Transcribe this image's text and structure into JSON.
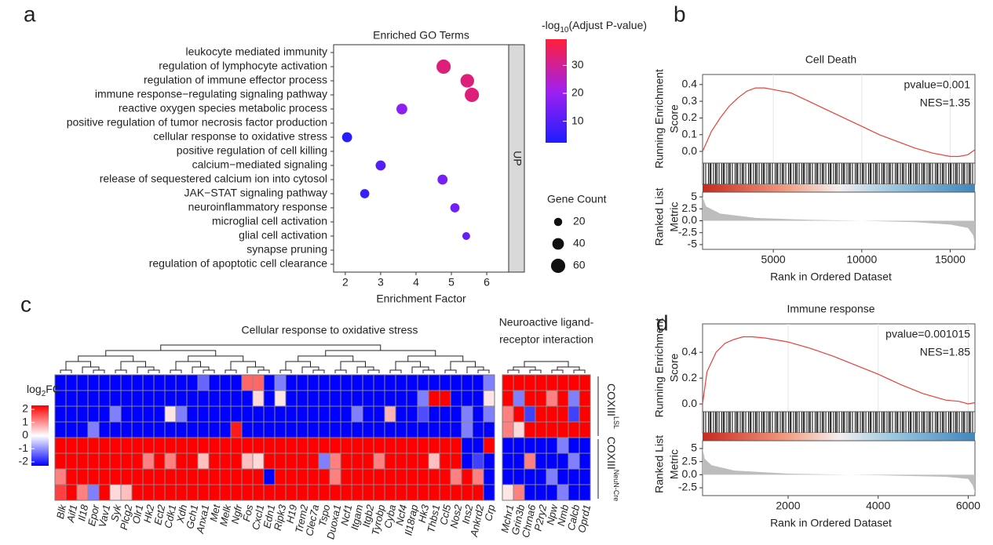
{
  "chart_data": [
    {
      "type": "dot",
      "panel": "a",
      "title": "Enriched GO Terms",
      "x_label": "Enrichment Factor",
      "categories": [
        "leukocyte mediated immunity",
        "regulation of lymphocyte activation",
        "regulation of immune effector process",
        "immune response−regulating signaling pathway",
        "reactive oxygen species metabolic process",
        "positive regulation of tumor necrosis factor production",
        "cellular response to oxidative stress",
        "positive regulation of cell killing",
        "calcium−mediated signaling",
        "release of sequestered calcium ion into cytosol",
        "JAK−STAT signaling pathway",
        "neuroinflammatory response",
        "microglial cell activation",
        "glial cell activation",
        "synapse pruning",
        "regulation of apoptotic cell clearance"
      ],
      "x": [
        null,
        4.78,
        5.45,
        5.58,
        3.6,
        null,
        2.05,
        null,
        3.0,
        4.75,
        2.55,
        5.1,
        null,
        5.42,
        null,
        null
      ],
      "sizes": [
        null,
        60,
        55,
        60,
        35,
        null,
        30,
        null,
        30,
        30,
        25,
        25,
        null,
        18,
        null,
        null
      ],
      "colors": [
        null,
        33,
        33,
        33,
        18,
        null,
        4,
        null,
        10,
        15,
        6,
        14,
        null,
        12,
        null,
        null
      ],
      "xlim": [
        1.67,
        6.62
      ],
      "xticks": [
        2,
        3,
        4,
        5,
        6
      ],
      "facet": "UP",
      "color_label": [
        "-log",
        "10",
        "(Adjust P-value)"
      ],
      "color_lim": [
        2.3,
        39.4
      ],
      "color_ticks": [
        10,
        20,
        30
      ],
      "color_scale": [
        "#1d1dff",
        "#a020f0",
        "#ff1f3a"
      ],
      "size_label": "Gene Count",
      "size_ticks": [
        20,
        40,
        60
      ]
    },
    {
      "type": "gsea",
      "panel": "b",
      "title": "Cell Death",
      "annotations": [
        "pvalue=0.001",
        "NES=1.35"
      ],
      "y_label": [
        "Running Enrichment",
        "Score"
      ],
      "y2_label": [
        "Ranked List",
        "Metric"
      ],
      "x_label": "Rank in Ordered Dataset",
      "x": [
        1000,
        1500,
        2000,
        2500,
        3000,
        3500,
        4000,
        4500,
        5000,
        6000,
        7000,
        8000,
        9000,
        10000,
        11000,
        12000,
        13000,
        14000,
        15000,
        15500,
        16000,
        16400
      ],
      "values": [
        0,
        0.12,
        0.2,
        0.27,
        0.32,
        0.36,
        0.38,
        0.38,
        0.37,
        0.35,
        0.3,
        0.25,
        0.2,
        0.15,
        0.1,
        0.06,
        0.02,
        -0.01,
        -0.03,
        -0.03,
        -0.02,
        0.01
      ],
      "metric_x": [
        1000,
        1200,
        2000,
        4000,
        7000,
        10000,
        13000,
        15000,
        16000,
        16300,
        16400
      ],
      "metric": [
        5,
        3,
        1.5,
        0.6,
        0.2,
        0,
        -0.3,
        -0.8,
        -1.5,
        -3,
        -5
      ],
      "color": "#e8413a",
      "xlim": [
        1000,
        16400
      ],
      "xticks": [
        5000,
        10000,
        15000
      ],
      "ylim": [
        -0.07,
        0.46
      ],
      "yticks": [
        {
          "value": 0,
          "label": "0.0"
        },
        0.1,
        0.2,
        0.3,
        0.4
      ],
      "y2lim": [
        -6,
        6
      ],
      "y2ticks": [
        5,
        2.5,
        {
          "value": 0,
          "label": "0.0"
        },
        -2.5,
        -5
      ]
    },
    {
      "type": "gsea",
      "panel": "d",
      "title": "Immune response",
      "annotations": [
        "pvalue=0.001015",
        "NES=1.85"
      ],
      "y_label": [
        "Running Enrichment",
        "Score"
      ],
      "y2_label": [
        "Ranked List",
        "Metric"
      ],
      "x_label": "Rank in Ordered Dataset",
      "x": [
        100,
        200,
        400,
        600,
        800,
        1000,
        1200,
        1500,
        2000,
        2500,
        3000,
        3500,
        4000,
        4500,
        5000,
        5500,
        5800,
        6000,
        6150
      ],
      "values": [
        0,
        0.25,
        0.4,
        0.47,
        0.5,
        0.52,
        0.52,
        0.51,
        0.48,
        0.43,
        0.37,
        0.3,
        0.23,
        0.15,
        0.08,
        0.03,
        0.02,
        0,
        0.01
      ],
      "metric_x": [
        100,
        150,
        300,
        800,
        2000,
        4000,
        5500,
        6000,
        6100,
        6150
      ],
      "metric": [
        5,
        3,
        1.8,
        0.8,
        0.2,
        -0.1,
        -0.4,
        -0.8,
        -2,
        -3.5
      ],
      "color": "#e8413a",
      "xlim": [
        100,
        6150
      ],
      "xticks": [
        2000,
        4000,
        6000
      ],
      "ylim": [
        -0.06,
        0.62
      ],
      "yticks": [
        {
          "value": 0,
          "label": "0.0"
        },
        0.2,
        0.4
      ],
      "y2lim": [
        -4,
        6.5
      ],
      "y2ticks": [
        5,
        2.5,
        {
          "value": 0,
          "label": "0.0"
        },
        -2.5
      ]
    },
    {
      "type": "heatmap",
      "panel": "c",
      "legend_label": [
        "log",
        "2",
        "FC"
      ],
      "clim": [
        -2.3,
        2.3
      ],
      "cticks": [
        2,
        1,
        0,
        -1,
        -2
      ],
      "row_groups": [
        {
          "name": "COXIII",
          "sup": "LSL"
        },
        {
          "name": "COXIII",
          "sup": "NeuN-Cre"
        }
      ],
      "blocks": [
        {
          "title": [
            "Cellular response to oxidative stress"
          ],
          "genes": [
            "Blk",
            "Aif1",
            "Il18",
            "Epor",
            "Vav1",
            "Syk",
            "Plcg2",
            "Olr1",
            "Hk2",
            "Ect2",
            "Cdk1",
            "Xdh",
            "Gch1",
            "Anxa1",
            "Met",
            "Melk",
            "Ngfr",
            "Fos",
            "Cxcl1",
            "Edn1",
            "Ripk3",
            "H19",
            "Trem2",
            "Clec7a",
            "Tspo",
            "Duoxa1",
            "Ncf1",
            "Itgam",
            "Itgb2",
            "Tyrobp",
            "Cyba",
            "Ncf4",
            "Il18rap",
            "Hk3",
            "Thbs1",
            "Ccl5",
            "Nos2",
            "Ins2",
            "Ankrd2",
            "Crp"
          ],
          "values": [
            [
              -2,
              -2,
              -2,
              -2,
              -2,
              -2,
              -2,
              -2,
              -2,
              -2,
              -2,
              -2,
              -2,
              -1.2,
              -2,
              -2,
              -2,
              1.2,
              1.2,
              -2,
              -1,
              -2,
              -2,
              -2,
              -2,
              -2,
              -2,
              -2,
              -2,
              -2,
              -2,
              -2,
              -2,
              -2,
              -2,
              -2,
              -2,
              -2,
              -2,
              -1
            ],
            [
              -2,
              -2,
              -2,
              -2,
              -2,
              -2,
              -2,
              -2,
              -2,
              -2,
              -2,
              -2,
              -2,
              -2,
              -2,
              -2,
              -2,
              -2,
              0.3,
              -2,
              0.2,
              -2,
              -2,
              -2,
              -2,
              -2,
              -2,
              -2,
              -2,
              -2,
              -2,
              -2,
              -2,
              -1,
              2,
              2,
              -2,
              -2,
              -2,
              0.2
            ],
            [
              -2,
              -2,
              -2,
              -2,
              -2,
              -1,
              -2,
              -2,
              -2,
              -2,
              0.2,
              -1,
              -2,
              -2,
              -2,
              -2,
              -2,
              -2,
              -2,
              -2,
              -2,
              -2,
              -2,
              -2,
              -2,
              -2,
              -2,
              -1,
              -2,
              -2,
              0.6,
              -2,
              -2,
              -1.4,
              -2,
              -2,
              -2,
              -1,
              -2,
              -1
            ],
            [
              -2,
              -2,
              -2,
              -1,
              -2,
              -2,
              -2,
              -2,
              -2,
              -2,
              -2,
              -2,
              -2,
              -2,
              -2,
              -2,
              1.8,
              -2,
              -2,
              -2,
              -2,
              -2,
              -2,
              -2,
              -2,
              -2,
              -2,
              -2,
              -2,
              -2,
              -2,
              -2,
              -2,
              -2,
              -2,
              -2,
              -2,
              -1,
              -2,
              -2
            ],
            [
              2,
              2,
              2,
              2,
              2,
              2,
              2,
              2,
              2,
              2,
              2,
              2,
              2,
              2,
              2,
              2,
              2,
              2,
              2,
              2,
              2,
              2,
              2,
              2,
              2,
              2,
              2,
              2,
              2,
              2,
              2,
              2,
              2,
              2,
              2,
              2,
              2,
              -2,
              -2,
              2
            ],
            [
              2,
              2,
              2,
              2,
              2,
              2,
              2,
              2,
              1,
              2,
              1,
              2,
              2,
              0.5,
              2,
              2,
              2,
              0.5,
              0.3,
              2,
              2,
              2,
              2,
              2,
              -1,
              1,
              2,
              2,
              2,
              1,
              2,
              2,
              2,
              2,
              0.5,
              2,
              2,
              -2,
              -1.5,
              -2
            ],
            [
              1,
              2,
              2,
              2,
              2,
              2,
              2,
              2,
              2,
              2,
              2,
              2,
              2,
              2,
              2,
              2,
              2,
              2,
              2,
              -2,
              2,
              2,
              2,
              2,
              2,
              1,
              2,
              2,
              2,
              2,
              2,
              2,
              2,
              2,
              2,
              2,
              1,
              2,
              1,
              -2
            ],
            [
              1.5,
              2,
              1,
              -1,
              2,
              0.3,
              0.5,
              2,
              2,
              2,
              2,
              2,
              2,
              2,
              2,
              2,
              2,
              2,
              2,
              2,
              2,
              2,
              2,
              2,
              2,
              2,
              2,
              2,
              2,
              2,
              2,
              2,
              2,
              2,
              2,
              2,
              2,
              2,
              2,
              -2
            ]
          ]
        },
        {
          "title": [
            "Neuroactive ligand-",
            "receptor interaction"
          ],
          "genes": [
            "Mchr1",
            "Grin3b",
            "Chrna6",
            "P2ry2",
            "Npw",
            "Nmb",
            "Calcb",
            "Oprd1"
          ],
          "values": [
            [
              2,
              2,
              2,
              2,
              2,
              2,
              2,
              2
            ],
            [
              2,
              -1,
              2,
              2,
              1,
              2,
              -1,
              2
            ],
            [
              1,
              2,
              -1.5,
              2,
              2,
              2,
              -1.5,
              2
            ],
            [
              1,
              0.3,
              2,
              2,
              2,
              2,
              2,
              2
            ],
            [
              -2,
              -2,
              -2,
              -2,
              -2,
              -1,
              -2,
              -2
            ],
            [
              -2,
              -2,
              1,
              -2,
              -2,
              -2,
              -1,
              -2
            ],
            [
              -2,
              -2,
              -2,
              -2,
              -1,
              -2,
              -2,
              -2
            ],
            [
              0.2,
              1,
              -2,
              -2,
              -2,
              -1,
              -2,
              -2
            ]
          ]
        }
      ]
    }
  ]
}
